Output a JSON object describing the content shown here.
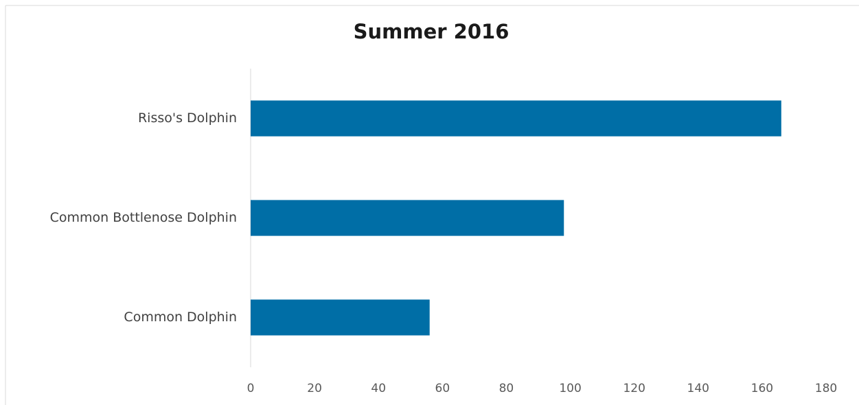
{
  "chart_data": {
    "type": "bar",
    "orientation": "horizontal",
    "title": "Summer 2016",
    "categories": [
      "Risso's Dolphin",
      "Common Bottlenose Dolphin",
      "Common Dolphin"
    ],
    "values": [
      166,
      98,
      56
    ],
    "color": "#006ea6",
    "xlim": [
      0,
      180
    ],
    "xticks": [
      0,
      20,
      40,
      60,
      80,
      100,
      120,
      140,
      160,
      180
    ],
    "grid": false
  }
}
